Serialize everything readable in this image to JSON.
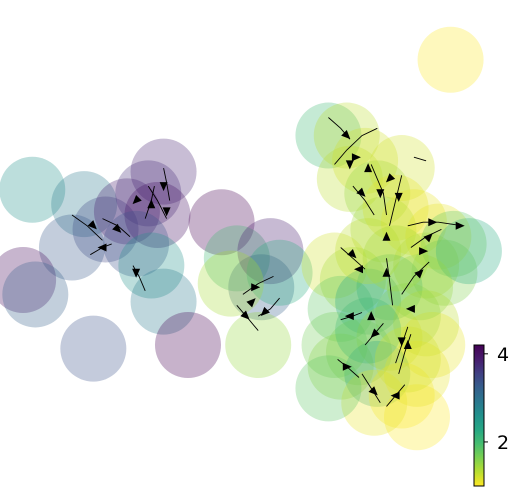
{
  "chart_data": {
    "type": "scatter",
    "title": "",
    "xlabel": "",
    "ylabel": "",
    "grid": false,
    "axes_visible": false,
    "marker_alpha": 0.3,
    "colormap": "viridis_r",
    "stream_color": "#000000",
    "colorbar": {
      "location": "right",
      "vmin": 1.0,
      "vmax": 4.2,
      "ticks": [
        2,
        4
      ],
      "tick_labels": [
        "2",
        "4"
      ]
    },
    "points": [
      {
        "x": 0.5,
        "y": 7.9,
        "v": 2.6
      },
      {
        "x": 2.2,
        "y": 7.5,
        "v": 2.9
      },
      {
        "x": 2.9,
        "y": 6.8,
        "v": 3.5
      },
      {
        "x": 3.6,
        "y": 7.3,
        "v": 3.9
      },
      {
        "x": 4.3,
        "y": 7.8,
        "v": 3.7
      },
      {
        "x": 4.8,
        "y": 8.4,
        "v": 3.8
      },
      {
        "x": 4.6,
        "y": 7.2,
        "v": 4.0
      },
      {
        "x": 3.9,
        "y": 6.4,
        "v": 3.4
      },
      {
        "x": 1.8,
        "y": 6.3,
        "v": 3.3
      },
      {
        "x": 0.2,
        "y": 5.4,
        "v": 4.1
      },
      {
        "x": 0.6,
        "y": 5.0,
        "v": 3.2
      },
      {
        "x": 4.4,
        "y": 5.8,
        "v": 2.6
      },
      {
        "x": 4.8,
        "y": 4.8,
        "v": 2.9
      },
      {
        "x": 2.5,
        "y": 3.5,
        "v": 3.4
      },
      {
        "x": 5.6,
        "y": 3.6,
        "v": 4.2
      },
      {
        "x": 6.7,
        "y": 7.0,
        "v": 4.3
      },
      {
        "x": 7.2,
        "y": 6.0,
        "v": 2.0
      },
      {
        "x": 8.0,
        "y": 5.2,
        "v": 3.2
      },
      {
        "x": 8.3,
        "y": 6.2,
        "v": 3.9
      },
      {
        "x": 8.6,
        "y": 5.6,
        "v": 2.2
      },
      {
        "x": 7.0,
        "y": 5.3,
        "v": 1.4
      },
      {
        "x": 7.9,
        "y": 3.6,
        "v": 1.5
      },
      {
        "x": 10.2,
        "y": 9.4,
        "v": 2.0
      },
      {
        "x": 10.8,
        "y": 9.4,
        "v": 1.3
      },
      {
        "x": 10.9,
        "y": 8.2,
        "v": 1.3
      },
      {
        "x": 11.4,
        "y": 8.7,
        "v": 1.2
      },
      {
        "x": 11.8,
        "y": 7.8,
        "v": 1.5
      },
      {
        "x": 12.6,
        "y": 8.5,
        "v": 1.2
      },
      {
        "x": 12.4,
        "y": 7.4,
        "v": 1.1
      },
      {
        "x": 12.0,
        "y": 6.8,
        "v": 1.4
      },
      {
        "x": 13.0,
        "y": 7.0,
        "v": 1.1
      },
      {
        "x": 13.8,
        "y": 6.6,
        "v": 1.1
      },
      {
        "x": 13.4,
        "y": 5.8,
        "v": 1.3
      },
      {
        "x": 14.0,
        "y": 5.6,
        "v": 1.6
      },
      {
        "x": 14.8,
        "y": 6.2,
        "v": 2.2
      },
      {
        "x": 14.3,
        "y": 6.4,
        "v": 1.8
      },
      {
        "x": 10.4,
        "y": 5.8,
        "v": 1.2
      },
      {
        "x": 11.0,
        "y": 5.4,
        "v": 1.4
      },
      {
        "x": 10.6,
        "y": 4.6,
        "v": 1.8
      },
      {
        "x": 11.5,
        "y": 4.8,
        "v": 2.3
      },
      {
        "x": 12.2,
        "y": 5.2,
        "v": 2.1
      },
      {
        "x": 12.8,
        "y": 4.4,
        "v": 1.6
      },
      {
        "x": 13.4,
        "y": 4.2,
        "v": 1.3
      },
      {
        "x": 13.6,
        "y": 3.6,
        "v": 1.1
      },
      {
        "x": 12.2,
        "y": 3.8,
        "v": 1.2
      },
      {
        "x": 11.2,
        "y": 3.4,
        "v": 1.6
      },
      {
        "x": 10.6,
        "y": 3.0,
        "v": 1.5
      },
      {
        "x": 11.8,
        "y": 2.8,
        "v": 2.4
      },
      {
        "x": 12.6,
        "y": 2.2,
        "v": 1.0
      },
      {
        "x": 13.1,
        "y": 1.6,
        "v": 1.0
      },
      {
        "x": 10.4,
        "y": 3.6,
        "v": 1.7
      },
      {
        "x": 11.7,
        "y": 2.0,
        "v": 1.1
      },
      {
        "x": 13.1,
        "y": 2.8,
        "v": 1.1
      },
      {
        "x": 10.2,
        "y": 2.4,
        "v": 1.8
      },
      {
        "x": 11.5,
        "y": 6.2,
        "v": 1.3
      },
      {
        "x": 12.4,
        "y": 6.0,
        "v": 1.4
      },
      {
        "x": 13.2,
        "y": 5.2,
        "v": 1.5
      },
      {
        "x": 14.2,
        "y": 11.5,
        "v": 1.0
      },
      {
        "x": 11.5,
        "y": 4.0,
        "v": 2.0
      },
      {
        "x": 12.8,
        "y": 3.2,
        "v": 1.2
      }
    ],
    "streamlines": [
      [
        [
          1.8,
          7.2
        ],
        [
          2.3,
          6.9
        ],
        [
          2.8,
          6.5
        ]
      ],
      [
        [
          2.8,
          7.1
        ],
        [
          3.3,
          6.9
        ],
        [
          3.7,
          6.6
        ]
      ],
      [
        [
          3.1,
          6.4
        ],
        [
          2.8,
          6.3
        ],
        [
          2.4,
          6.1
        ]
      ],
      [
        [
          4.3,
          8.0
        ],
        [
          4.6,
          7.6
        ],
        [
          4.9,
          7.1
        ]
      ],
      [
        [
          4.8,
          8.5
        ],
        [
          4.9,
          8.1
        ],
        [
          5.0,
          7.6
        ]
      ],
      [
        [
          4.2,
          7.1
        ],
        [
          4.4,
          7.6
        ],
        [
          4.5,
          8.0
        ]
      ],
      [
        [
          3.8,
          5.8
        ],
        [
          4.0,
          5.5
        ],
        [
          4.2,
          5.1
        ]
      ],
      [
        [
          7.2,
          4.7
        ],
        [
          7.6,
          4.3
        ],
        [
          7.9,
          4.0
        ]
      ],
      [
        [
          7.4,
          5.0
        ],
        [
          7.9,
          5.3
        ],
        [
          8.4,
          5.5
        ]
      ],
      [
        [
          8.6,
          4.9
        ],
        [
          8.3,
          4.6
        ],
        [
          7.9,
          4.4
        ]
      ],
      [
        [
          10.2,
          9.9
        ],
        [
          10.6,
          9.6
        ],
        [
          10.9,
          9.3
        ]
      ],
      [
        [
          10.4,
          8.6
        ],
        [
          10.8,
          9.0
        ],
        [
          11.3,
          9.4
        ],
        [
          11.8,
          9.6
        ]
      ],
      [
        [
          11.6,
          8.6
        ],
        [
          11.8,
          8.2
        ],
        [
          12.0,
          7.8
        ],
        [
          12.1,
          7.2
        ]
      ],
      [
        [
          12.6,
          8.3
        ],
        [
          12.4,
          7.6
        ],
        [
          12.2,
          6.9
        ]
      ],
      [
        [
          13.0,
          8.8
        ],
        [
          13.4,
          8.7
        ]
      ],
      [
        [
          11.0,
          8.0
        ],
        [
          11.4,
          7.6
        ],
        [
          11.7,
          7.2
        ]
      ],
      [
        [
          12.8,
          6.9
        ],
        [
          13.3,
          7.0
        ],
        [
          13.8,
          7.0
        ],
        [
          14.6,
          6.9
        ]
      ],
      [
        [
          12.9,
          6.3
        ],
        [
          13.4,
          6.6
        ],
        [
          13.9,
          6.8
        ]
      ],
      [
        [
          12.6,
          5.0
        ],
        [
          13.0,
          5.5
        ],
        [
          13.5,
          5.9
        ]
      ],
      [
        [
          12.3,
          4.7
        ],
        [
          12.2,
          5.4
        ],
        [
          12.1,
          6.0
        ]
      ],
      [
        [
          10.6,
          6.3
        ],
        [
          11.0,
          6.0
        ],
        [
          11.4,
          5.7
        ]
      ],
      [
        [
          11.3,
          4.5
        ],
        [
          11.0,
          4.4
        ],
        [
          10.6,
          4.3
        ]
      ],
      [
        [
          12.0,
          4.2
        ],
        [
          11.7,
          3.9
        ],
        [
          11.4,
          3.6
        ]
      ],
      [
        [
          12.8,
          4.1
        ],
        [
          12.6,
          3.6
        ],
        [
          12.4,
          3.1
        ]
      ],
      [
        [
          10.5,
          3.2
        ],
        [
          10.8,
          3.0
        ],
        [
          11.2,
          2.7
        ]
      ],
      [
        [
          11.3,
          2.8
        ],
        [
          11.6,
          2.4
        ],
        [
          11.9,
          2.0
        ]
      ],
      [
        [
          12.7,
          2.5
        ],
        [
          12.4,
          2.2
        ],
        [
          12.1,
          1.9
        ]
      ],
      [
        [
          12.5,
          2.8
        ],
        [
          12.7,
          3.4
        ],
        [
          12.9,
          3.9
        ]
      ]
    ],
    "arrows": [
      {
        "x": 2.5,
        "y": 6.9,
        "dir": "se"
      },
      {
        "x": 3.3,
        "y": 6.8,
        "dir": "se"
      },
      {
        "x": 2.8,
        "y": 6.3,
        "dir": "w"
      },
      {
        "x": 3.9,
        "y": 5.6,
        "dir": "s"
      },
      {
        "x": 4.4,
        "y": 7.5,
        "dir": "n"
      },
      {
        "x": 4.8,
        "y": 8.0,
        "dir": "s"
      },
      {
        "x": 4.9,
        "y": 7.3,
        "dir": "s"
      },
      {
        "x": 3.9,
        "y": 7.6,
        "dir": "sw"
      },
      {
        "x": 7.5,
        "y": 4.4,
        "dir": "se"
      },
      {
        "x": 7.8,
        "y": 5.2,
        "dir": "e"
      },
      {
        "x": 8.1,
        "y": 4.5,
        "dir": "sw"
      },
      {
        "x": 7.7,
        "y": 4.8,
        "dir": "ne"
      },
      {
        "x": 10.8,
        "y": 9.4,
        "dir": "se"
      },
      {
        "x": 11.1,
        "y": 8.8,
        "dir": "e"
      },
      {
        "x": 11.5,
        "y": 8.5,
        "dir": "n"
      },
      {
        "x": 11.9,
        "y": 7.8,
        "dir": "s"
      },
      {
        "x": 12.5,
        "y": 7.7,
        "dir": "s"
      },
      {
        "x": 12.2,
        "y": 8.2,
        "dir": "sw"
      },
      {
        "x": 11.3,
        "y": 7.8,
        "dir": "se"
      },
      {
        "x": 13.6,
        "y": 7.0,
        "dir": "e"
      },
      {
        "x": 14.5,
        "y": 6.9,
        "dir": "e"
      },
      {
        "x": 13.5,
        "y": 6.6,
        "dir": "ne"
      },
      {
        "x": 13.2,
        "y": 5.6,
        "dir": "ne"
      },
      {
        "x": 12.1,
        "y": 5.6,
        "dir": "n"
      },
      {
        "x": 11.0,
        "y": 6.1,
        "dir": "se"
      },
      {
        "x": 10.9,
        "y": 4.4,
        "dir": "w"
      },
      {
        "x": 11.7,
        "y": 3.9,
        "dir": "sw"
      },
      {
        "x": 12.6,
        "y": 3.7,
        "dir": "s"
      },
      {
        "x": 10.8,
        "y": 3.0,
        "dir": "e"
      },
      {
        "x": 11.7,
        "y": 2.3,
        "dir": "se"
      },
      {
        "x": 12.4,
        "y": 2.2,
        "dir": "w"
      },
      {
        "x": 12.8,
        "y": 3.6,
        "dir": "n"
      },
      {
        "x": 11.6,
        "y": 4.4,
        "dir": "n"
      },
      {
        "x": 12.9,
        "y": 4.6,
        "dir": "w"
      },
      {
        "x": 10.9,
        "y": 8.6,
        "dir": "s"
      },
      {
        "x": 12.1,
        "y": 6.6,
        "dir": "n"
      },
      {
        "x": 13.3,
        "y": 6.2,
        "dir": "e"
      },
      {
        "x": 11.2,
        "y": 5.7,
        "dir": "w"
      }
    ]
  }
}
